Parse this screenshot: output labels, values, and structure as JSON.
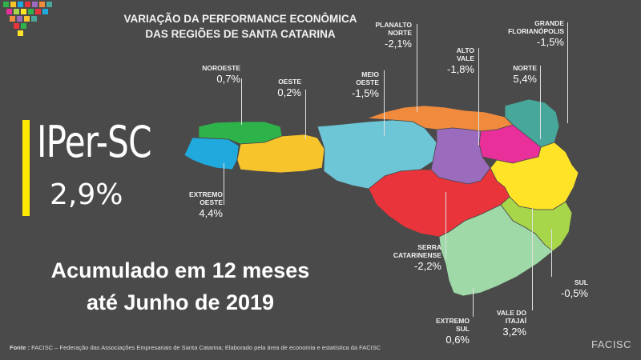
{
  "title": {
    "line1": "VARIAÇÃO DA PERFORMANCE ECONÔMICA",
    "line2": "DAS REGIÕES DE SANTA CATARINA"
  },
  "indicator": {
    "name": "IPer-SC",
    "value": "2,9%",
    "accent_color": "#ffeb00"
  },
  "period": {
    "line1": "Acumulado em 12 meses",
    "line2": "até Junho de 2019"
  },
  "regions": [
    {
      "name_lines": [
        "NOROESTE"
      ],
      "value": "0,7%",
      "color": "#2eb24a"
    },
    {
      "name_lines": [
        "OESTE"
      ],
      "value": "0,2%",
      "color": "#f7c52b"
    },
    {
      "name_lines": [
        "EXTREMO",
        "OESTE"
      ],
      "value": "4,4%",
      "color": "#1fa9dc"
    },
    {
      "name_lines": [
        "MEIO",
        "OESTE"
      ],
      "value": "-1,5%",
      "color": "#6cc6d6"
    },
    {
      "name_lines": [
        "PLANALTO",
        "NORTE"
      ],
      "value": "-2,1%",
      "color": "#f08a3c"
    },
    {
      "name_lines": [
        "ALTO",
        "VALE"
      ],
      "value": "-1,8%",
      "color": "#9b6bbd"
    },
    {
      "name_lines": [
        "GRANDE",
        "FLORIANÓPOLIS"
      ],
      "value": "-1,5%",
      "color": "#47a79a"
    },
    {
      "name_lines": [
        "NORTE"
      ],
      "value": "5,4%",
      "color": "#e92f9a"
    },
    {
      "name_lines": [
        "SERRA",
        "CATARINENSE"
      ],
      "value": "-2,2%",
      "color": "#e8343a"
    },
    {
      "name_lines": [
        "SUL"
      ],
      "value": "-0,5%",
      "color": "#a8d64a"
    },
    {
      "name_lines": [
        "VALE DO",
        "ITAJAÍ"
      ],
      "value": "3,2%",
      "color": "#ffe326"
    },
    {
      "name_lines": [
        "EXTREMO",
        "SUL"
      ],
      "value": "0,6%",
      "color": "#9fd9a8"
    }
  ],
  "footer": {
    "label": "Fonte :",
    "text": "FACISC – Federação das Associações Empresariais de Santa Catarina; Elaborado pela área de economia e estatística da FACISC"
  },
  "brand": "FACISC"
}
